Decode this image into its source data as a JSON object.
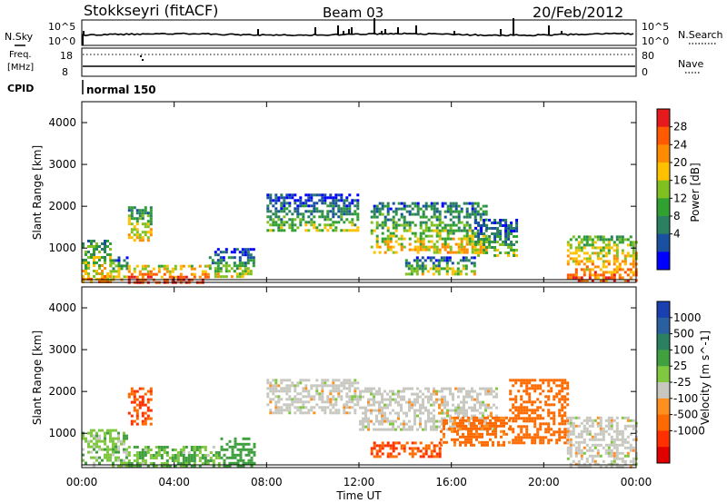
{
  "header": {
    "station": "Stokkseyri (fitACF)",
    "beam": "Beam 03",
    "date": "20/Feb/2012"
  },
  "panels": {
    "nsky": {
      "left_label": "N.Sky",
      "right_label": "N.Search",
      "left_ticks": [
        "10^5",
        "10^0"
      ],
      "right_ticks": [
        "10^5",
        "10^0"
      ]
    },
    "freq": {
      "left_label": "Freq.",
      "left_unit": "[MHz]",
      "right_label": "Nave",
      "left_ticks": [
        "18",
        "8"
      ],
      "right_ticks": [
        "80",
        "0"
      ]
    },
    "cpid": {
      "label": "CPID",
      "mode": "normal 150"
    }
  },
  "colorbars": {
    "power": {
      "title": "Power [dB]",
      "ticks": [
        "28",
        "24",
        "20",
        "16",
        "12",
        "8",
        "4"
      ],
      "colors": [
        "#e41a1c",
        "#ff5a00",
        "#ff8c00",
        "#ffc000",
        "#80c020",
        "#30a030",
        "#2a8060",
        "#1a50a0",
        "#0000ff"
      ]
    },
    "velocity": {
      "title": "Velocity [m s^-1]",
      "ticks": [
        "1000",
        "500",
        "100",
        "25",
        "-25",
        "-100",
        "-500",
        "-1000"
      ],
      "colors": [
        "#1a3fb0",
        "#2a60a0",
        "#2a8060",
        "#40a040",
        "#80c840",
        "#c8c8c0",
        "#ff9020",
        "#ff6a00",
        "#ff3000",
        "#e00000"
      ]
    }
  },
  "chart_data": [
    {
      "type": "heatmap",
      "title": "",
      "xlabel": "Time UT",
      "ylabel": "Slant Range [km]",
      "x_ticks": [
        "00:00",
        "04:00",
        "08:00",
        "12:00",
        "16:00",
        "20:00",
        "00:00"
      ],
      "y_ticks": [
        "1000",
        "2000",
        "3000",
        "4000"
      ],
      "xlim": [
        0,
        24
      ],
      "ylim": [
        180,
        4500
      ],
      "colorbar": "Power [dB]",
      "regions": [
        {
          "t": [
            0.0,
            1.2
          ],
          "r": [
            200,
            1200
          ],
          "value": 14
        },
        {
          "t": [
            1.2,
            2.0
          ],
          "r": [
            250,
            800
          ],
          "value": 12
        },
        {
          "t": [
            2.0,
            3.0
          ],
          "r": [
            1200,
            2000
          ],
          "value": 14
        },
        {
          "t": [
            2.0,
            5.5
          ],
          "r": [
            200,
            600
          ],
          "value": 22
        },
        {
          "t": [
            5.5,
            7.5
          ],
          "r": [
            300,
            1000
          ],
          "value": 10
        },
        {
          "t": [
            8.0,
            12.0
          ],
          "r": [
            1400,
            2300
          ],
          "value": 8
        },
        {
          "t": [
            12.5,
            17.5
          ],
          "r": [
            900,
            2100
          ],
          "value": 12
        },
        {
          "t": [
            14.0,
            17.0
          ],
          "r": [
            400,
            800
          ],
          "value": 10
        },
        {
          "t": [
            17.0,
            18.8
          ],
          "r": [
            800,
            1700
          ],
          "value": 9
        },
        {
          "t": [
            21.0,
            24.0
          ],
          "r": [
            200,
            1300
          ],
          "value": 18
        }
      ]
    },
    {
      "type": "heatmap",
      "title": "",
      "xlabel": "Time UT",
      "ylabel": "Slant Range [km]",
      "x_ticks": [
        "00:00",
        "04:00",
        "08:00",
        "12:00",
        "16:00",
        "20:00",
        "00:00"
      ],
      "y_ticks": [
        "1000",
        "2000",
        "3000",
        "4000"
      ],
      "xlim": [
        0,
        24
      ],
      "ylim": [
        180,
        4500
      ],
      "colorbar": "Velocity [m s^-1]",
      "regions": [
        {
          "t": [
            0.0,
            2.0
          ],
          "r": [
            200,
            1100
          ],
          "value": 60
        },
        {
          "t": [
            2.0,
            3.0
          ],
          "r": [
            1200,
            2100
          ],
          "value": -500
        },
        {
          "t": [
            2.0,
            6.0
          ],
          "r": [
            200,
            700
          ],
          "value": 100
        },
        {
          "t": [
            6.0,
            7.5
          ],
          "r": [
            200,
            900
          ],
          "value": 300
        },
        {
          "t": [
            8.0,
            12.0
          ],
          "r": [
            1500,
            2300
          ],
          "value": 0
        },
        {
          "t": [
            12.0,
            18.0
          ],
          "r": [
            1100,
            2100
          ],
          "value": 0
        },
        {
          "t": [
            12.5,
            15.5
          ],
          "r": [
            450,
            800
          ],
          "value": -500
        },
        {
          "t": [
            15.5,
            18.5
          ],
          "r": [
            700,
            1400
          ],
          "value": -200
        },
        {
          "t": [
            18.5,
            21.0
          ],
          "r": [
            800,
            2300
          ],
          "value": -300
        },
        {
          "t": [
            21.0,
            24.0
          ],
          "r": [
            200,
            1400
          ],
          "value": 0
        }
      ]
    }
  ]
}
